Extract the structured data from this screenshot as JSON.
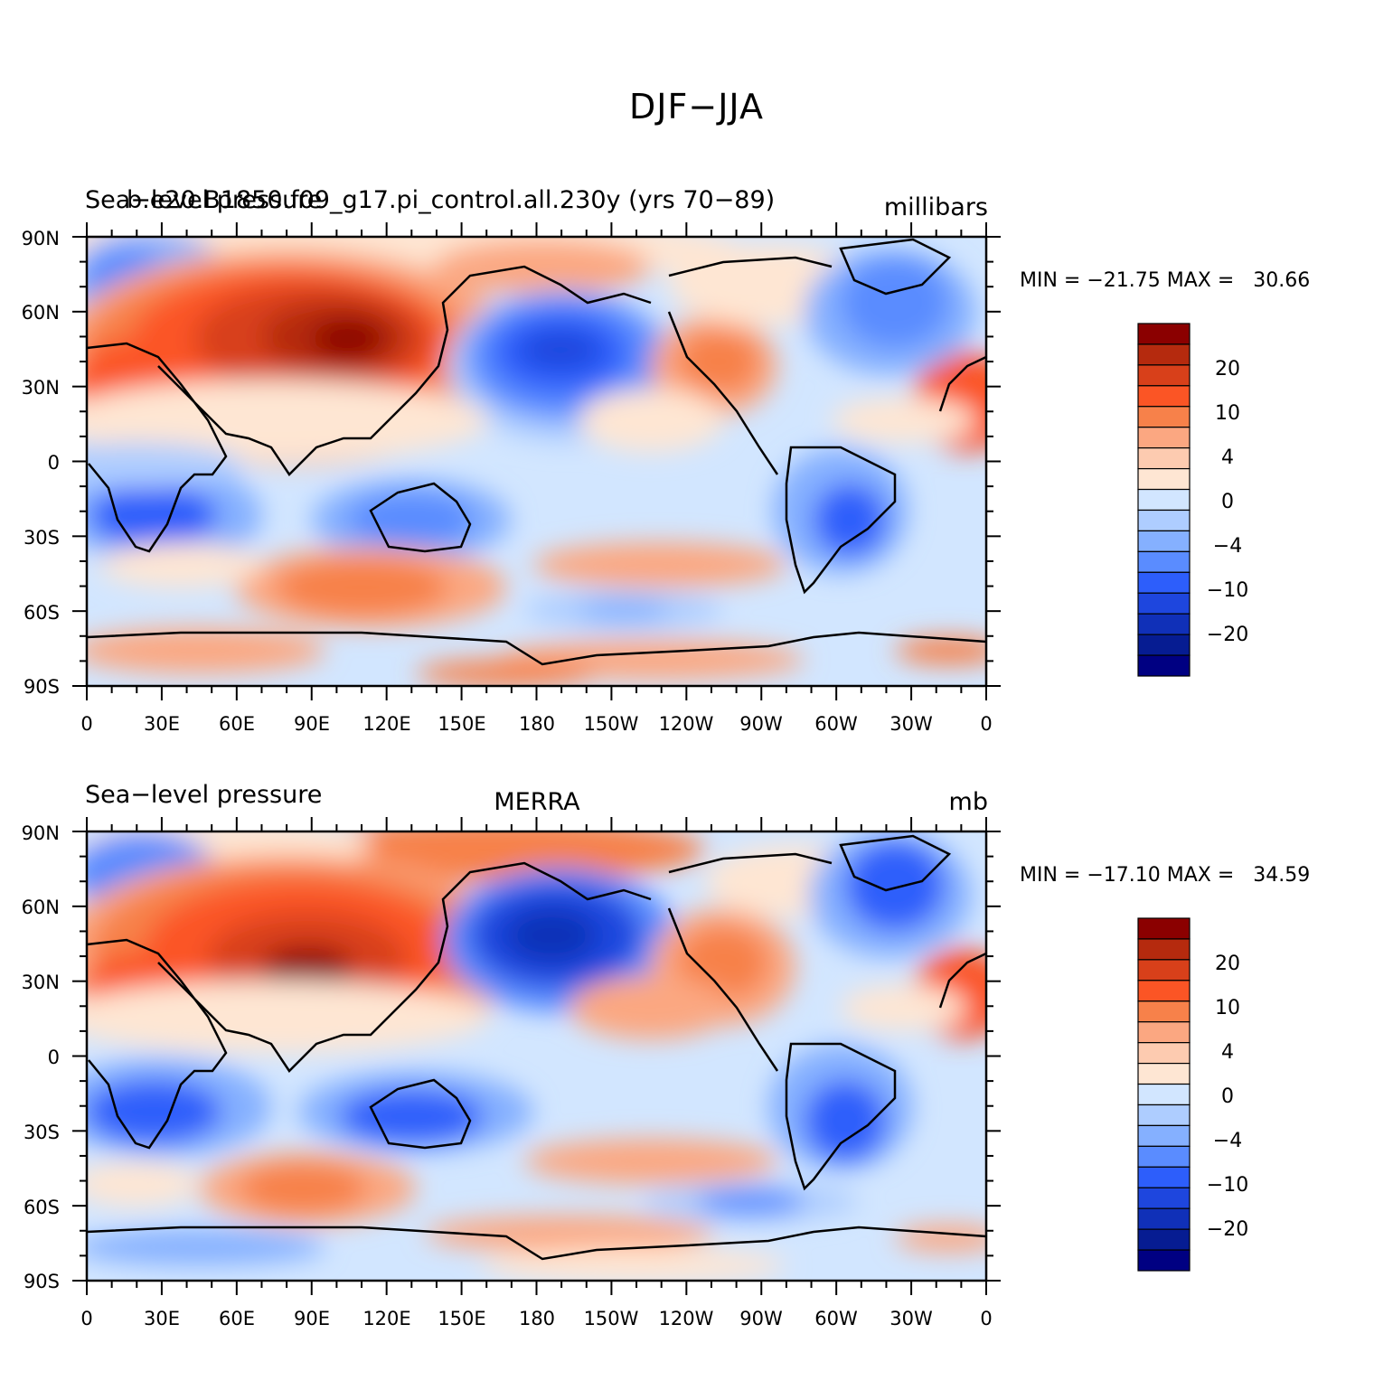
{
  "figure": {
    "title": "DJF−JJA"
  },
  "panels": [
    {
      "id": "model",
      "left_label": "Sea−level pressure",
      "overlay_label": "b.e20.B1850.f09_g17.pi_control.all.230y (yrs 70−89)",
      "center_label": "",
      "units": "millibars",
      "stats": "MIN = −21.75 MAX =   30.66"
    },
    {
      "id": "obs",
      "left_label": "Sea−level pressure",
      "overlay_label": "",
      "center_label": "MERRA",
      "units": "mb",
      "stats": "MIN = −17.10 MAX =   34.59"
    }
  ],
  "axes": {
    "lat_ticks": [
      "90N",
      "60N",
      "30N",
      "0",
      "30S",
      "60S",
      "90S"
    ],
    "lon_ticks": [
      "0",
      "30E",
      "60E",
      "90E",
      "120E",
      "150E",
      "180",
      "150W",
      "120W",
      "90W",
      "60W",
      "30W",
      "0"
    ]
  },
  "colorbar": {
    "labels": [
      "20",
      "10",
      "4",
      "0",
      "−4",
      "−10",
      "−20"
    ],
    "colors": [
      "#8b0000",
      "#b52a0e",
      "#d8401a",
      "#fb5525",
      "#f7814a",
      "#fba781",
      "#fdcbb0",
      "#fee6d3",
      "#d2e6ff",
      "#aecdff",
      "#85b0ff",
      "#5a8cff",
      "#2d5efb",
      "#1e46de",
      "#1030b8",
      "#061c92",
      "#000082"
    ]
  },
  "map_colors": {
    "ocean_base": "#d2e6ff",
    "pos1": "#fee6d3",
    "pos2": "#fdcbb0",
    "pos3": "#fba781",
    "pos4": "#f7814a",
    "pos5": "#fb5525",
    "pos6": "#d8401a",
    "pos7": "#b52a0e",
    "pos8": "#8b0000",
    "neg2": "#aecdff",
    "neg3": "#85b0ff",
    "neg4": "#5a8cff",
    "neg5": "#2d5efb",
    "neg6": "#1e46de",
    "neg7": "#1030b8"
  }
}
